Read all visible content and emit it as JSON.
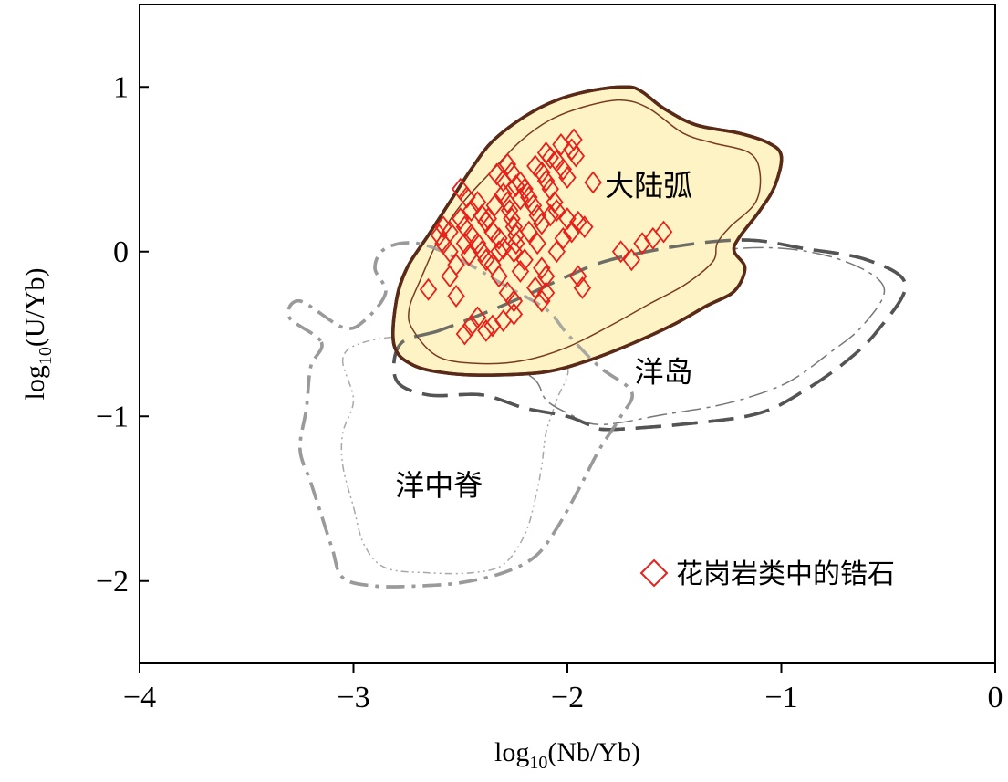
{
  "chart_data": {
    "type": "scatter",
    "xlim": [
      -4,
      0
    ],
    "ylim": [
      -2.5,
      1.5
    ],
    "xticks": [
      -4,
      -3,
      -2,
      -1,
      0
    ],
    "yticks": [
      -2,
      -1,
      0,
      1
    ],
    "xtick_labels": [
      "−4",
      "−3",
      "−2",
      "−1",
      "0"
    ],
    "ytick_labels": [
      "−2",
      "−1",
      "0",
      "1"
    ],
    "xlabel": {
      "pre": "log",
      "sub": "10",
      "post": "(Nb/Yb)"
    },
    "ylabel": {
      "pre": "log",
      "sub": "10",
      "post": "(U/Yb)"
    },
    "grid": false,
    "legend_position": "bottom-right",
    "regions": [
      {
        "label": "大陆弧",
        "fill": "#fdf3c4",
        "outer_color": "#5a2a18",
        "outer": [
          [
            -2.81,
            -0.57
          ],
          [
            -2.72,
            -0.69
          ],
          [
            -2.55,
            -0.74
          ],
          [
            -2.35,
            -0.75
          ],
          [
            -2.1,
            -0.73
          ],
          [
            -1.9,
            -0.66
          ],
          [
            -1.7,
            -0.56
          ],
          [
            -1.5,
            -0.44
          ],
          [
            -1.35,
            -0.33
          ],
          [
            -1.22,
            -0.24
          ],
          [
            -1.17,
            -0.1
          ],
          [
            -1.22,
            0.0
          ],
          [
            -1.2,
            0.08
          ],
          [
            -1.1,
            0.25
          ],
          [
            -1.03,
            0.4
          ],
          [
            -1.0,
            0.58
          ],
          [
            -1.06,
            0.66
          ],
          [
            -1.2,
            0.72
          ],
          [
            -1.4,
            0.77
          ],
          [
            -1.55,
            0.87
          ],
          [
            -1.65,
            0.97
          ],
          [
            -1.72,
            1.0
          ],
          [
            -1.88,
            0.98
          ],
          [
            -2.05,
            0.92
          ],
          [
            -2.2,
            0.82
          ],
          [
            -2.35,
            0.67
          ],
          [
            -2.45,
            0.5
          ],
          [
            -2.55,
            0.3
          ],
          [
            -2.65,
            0.1
          ],
          [
            -2.75,
            -0.1
          ],
          [
            -2.8,
            -0.3
          ]
        ],
        "inner": [
          [
            -2.72,
            -0.48
          ],
          [
            -2.6,
            -0.64
          ],
          [
            -2.4,
            -0.68
          ],
          [
            -2.2,
            -0.66
          ],
          [
            -2.0,
            -0.58
          ],
          [
            -1.8,
            -0.45
          ],
          [
            -1.62,
            -0.32
          ],
          [
            -1.45,
            -0.2
          ],
          [
            -1.32,
            -0.06
          ],
          [
            -1.3,
            0.05
          ],
          [
            -1.24,
            0.15
          ],
          [
            -1.12,
            0.3
          ],
          [
            -1.1,
            0.48
          ],
          [
            -1.15,
            0.6
          ],
          [
            -1.32,
            0.66
          ],
          [
            -1.46,
            0.72
          ],
          [
            -1.62,
            0.87
          ],
          [
            -1.75,
            0.92
          ],
          [
            -1.92,
            0.88
          ],
          [
            -2.08,
            0.8
          ],
          [
            -2.22,
            0.67
          ],
          [
            -2.36,
            0.48
          ],
          [
            -2.5,
            0.28
          ],
          [
            -2.6,
            0.08
          ],
          [
            -2.68,
            -0.15
          ],
          [
            -2.74,
            -0.35
          ]
        ],
        "label_xy": [
          -1.62,
          0.39
        ]
      },
      {
        "label": "洋岛",
        "outer_color": "#555555",
        "outer": [
          [
            -2.6,
            -0.48
          ],
          [
            -2.78,
            -0.56
          ],
          [
            -2.8,
            -0.78
          ],
          [
            -2.65,
            -0.87
          ],
          [
            -2.4,
            -0.87
          ],
          [
            -2.2,
            -0.95
          ],
          [
            -2.0,
            -1.0
          ],
          [
            -1.9,
            -1.05
          ],
          [
            -1.8,
            -1.08
          ],
          [
            -1.4,
            -1.04
          ],
          [
            -1.1,
            -0.98
          ],
          [
            -0.9,
            -0.85
          ],
          [
            -0.7,
            -0.67
          ],
          [
            -0.55,
            -0.48
          ],
          [
            -0.42,
            -0.2
          ],
          [
            -0.6,
            -0.05
          ],
          [
            -0.9,
            0.02
          ],
          [
            -1.15,
            0.07
          ],
          [
            -1.45,
            0.04
          ],
          [
            -1.8,
            -0.05
          ],
          [
            -2.0,
            -0.15
          ],
          [
            -2.2,
            -0.27
          ],
          [
            -2.4,
            -0.38
          ]
        ],
        "inner": [
          [
            -2.3,
            -0.62
          ],
          [
            -2.15,
            -0.78
          ],
          [
            -2.1,
            -0.9
          ],
          [
            -2.0,
            -0.98
          ],
          [
            -1.85,
            -1.05
          ],
          [
            -1.55,
            -0.99
          ],
          [
            -1.25,
            -0.92
          ],
          [
            -0.98,
            -0.8
          ],
          [
            -0.78,
            -0.62
          ],
          [
            -0.62,
            -0.45
          ],
          [
            -0.52,
            -0.22
          ],
          [
            -0.7,
            -0.06
          ],
          [
            -1.0,
            0.02
          ],
          [
            -1.35,
            0.0
          ],
          [
            -1.7,
            -0.1
          ],
          [
            -1.95,
            -0.25
          ],
          [
            -2.15,
            -0.4
          ]
        ],
        "label_xy": [
          -1.55,
          -0.74
        ]
      },
      {
        "label": "洋中脊",
        "outer_color": "#9a9a9a",
        "outer": [
          [
            -3.15,
            -0.55
          ],
          [
            -3.2,
            -0.7
          ],
          [
            -3.22,
            -0.95
          ],
          [
            -3.25,
            -1.2
          ],
          [
            -3.2,
            -1.4
          ],
          [
            -3.15,
            -1.6
          ],
          [
            -3.1,
            -1.8
          ],
          [
            -3.05,
            -1.98
          ],
          [
            -2.9,
            -2.03
          ],
          [
            -2.7,
            -2.03
          ],
          [
            -2.5,
            -2.01
          ],
          [
            -2.3,
            -1.95
          ],
          [
            -2.15,
            -1.85
          ],
          [
            -2.05,
            -1.68
          ],
          [
            -1.95,
            -1.45
          ],
          [
            -1.85,
            -1.2
          ],
          [
            -1.75,
            -1.0
          ],
          [
            -1.7,
            -0.85
          ],
          [
            -1.85,
            -0.7
          ],
          [
            -2.0,
            -0.5
          ],
          [
            -2.1,
            -0.35
          ],
          [
            -2.3,
            -0.2
          ],
          [
            -2.5,
            -0.05
          ],
          [
            -2.7,
            0.05
          ],
          [
            -2.85,
            0.02
          ],
          [
            -2.9,
            -0.1
          ],
          [
            -2.85,
            -0.25
          ],
          [
            -2.95,
            -0.42
          ],
          [
            -3.05,
            -0.46
          ],
          [
            -3.25,
            -0.3
          ],
          [
            -3.3,
            -0.4
          ]
        ],
        "inner": [
          [
            -3.05,
            -0.65
          ],
          [
            -3.0,
            -0.9
          ],
          [
            -3.05,
            -1.1
          ],
          [
            -3.05,
            -1.3
          ],
          [
            -3.0,
            -1.55
          ],
          [
            -2.95,
            -1.78
          ],
          [
            -2.85,
            -1.92
          ],
          [
            -2.65,
            -1.95
          ],
          [
            -2.45,
            -1.95
          ],
          [
            -2.3,
            -1.9
          ],
          [
            -2.2,
            -1.72
          ],
          [
            -2.15,
            -1.5
          ],
          [
            -2.12,
            -1.3
          ],
          [
            -2.1,
            -1.1
          ],
          [
            -2.05,
            -0.9
          ],
          [
            -2.0,
            -0.7
          ],
          [
            -2.15,
            -0.56
          ],
          [
            -2.4,
            -0.45
          ],
          [
            -2.7,
            -0.5
          ],
          [
            -2.95,
            -0.55
          ]
        ],
        "label_xy": [
          -2.6,
          -1.43
        ]
      }
    ],
    "series": [
      {
        "name": "花岗岩类中的锆石",
        "marker": "diamond",
        "color": "#e8201a",
        "points": [
          [
            -2.6,
            0.1
          ],
          [
            -2.58,
            0.05
          ],
          [
            -2.55,
            0.0
          ],
          [
            -2.52,
            -0.08
          ],
          [
            -2.55,
            0.12
          ],
          [
            -2.5,
            0.2
          ],
          [
            -2.48,
            0.15
          ],
          [
            -2.45,
            0.1
          ],
          [
            -2.42,
            0.05
          ],
          [
            -2.4,
            0.0
          ],
          [
            -2.38,
            -0.05
          ],
          [
            -2.45,
            0.25
          ],
          [
            -2.42,
            0.3
          ],
          [
            -2.4,
            0.22
          ],
          [
            -2.38,
            0.18
          ],
          [
            -2.35,
            0.12
          ],
          [
            -2.32,
            0.08
          ],
          [
            -2.3,
            0.02
          ],
          [
            -2.3,
            0.35
          ],
          [
            -2.28,
            0.3
          ],
          [
            -2.27,
            0.25
          ],
          [
            -2.26,
            0.2
          ],
          [
            -2.25,
            0.15
          ],
          [
            -2.24,
            0.1
          ],
          [
            -2.24,
            0.05
          ],
          [
            -2.25,
            0.0
          ],
          [
            -2.26,
            0.48
          ],
          [
            -2.22,
            0.42
          ],
          [
            -2.2,
            0.38
          ],
          [
            -2.18,
            0.33
          ],
          [
            -2.16,
            0.28
          ],
          [
            -2.14,
            0.22
          ],
          [
            -2.12,
            0.17
          ],
          [
            -2.15,
            0.52
          ],
          [
            -2.12,
            0.48
          ],
          [
            -2.1,
            0.43
          ],
          [
            -2.08,
            0.38
          ],
          [
            -2.06,
            0.3
          ],
          [
            -2.05,
            0.25
          ],
          [
            -2.1,
            0.6
          ],
          [
            -2.08,
            0.57
          ],
          [
            -2.05,
            0.55
          ],
          [
            -2.02,
            0.5
          ],
          [
            -2.0,
            0.45
          ],
          [
            -1.98,
            0.62
          ],
          [
            -1.96,
            0.58
          ],
          [
            -2.03,
            0.65
          ],
          [
            -1.97,
            0.68
          ],
          [
            -2.5,
            0.38
          ],
          [
            -2.47,
            0.33
          ],
          [
            -2.33,
            0.47
          ],
          [
            -2.3,
            0.43
          ],
          [
            -2.28,
            0.53
          ],
          [
            -2.0,
            0.2
          ],
          [
            -1.98,
            0.12
          ],
          [
            -1.95,
            0.18
          ],
          [
            -2.02,
            0.08
          ],
          [
            -2.05,
            0.0
          ],
          [
            -2.12,
            -0.1
          ],
          [
            -2.1,
            -0.15
          ],
          [
            -2.15,
            -0.22
          ],
          [
            -2.2,
            -0.05
          ],
          [
            -2.22,
            -0.12
          ],
          [
            -2.35,
            -0.08
          ],
          [
            -2.32,
            -0.15
          ],
          [
            -2.28,
            -0.25
          ],
          [
            -2.25,
            -0.3
          ],
          [
            -2.65,
            -0.23
          ],
          [
            -2.52,
            -0.27
          ],
          [
            -2.48,
            -0.5
          ],
          [
            -2.45,
            -0.45
          ],
          [
            -2.38,
            -0.48
          ],
          [
            -2.3,
            -0.42
          ],
          [
            -2.25,
            -0.38
          ],
          [
            -2.12,
            -0.3
          ],
          [
            -2.1,
            -0.25
          ],
          [
            -1.95,
            -0.15
          ],
          [
            -1.93,
            -0.22
          ],
          [
            -1.88,
            0.42
          ],
          [
            -1.92,
            0.15
          ],
          [
            -1.75,
            0.0
          ],
          [
            -1.7,
            -0.05
          ],
          [
            -1.65,
            0.05
          ],
          [
            -1.6,
            0.08
          ],
          [
            -1.55,
            0.12
          ],
          [
            -2.58,
            0.15
          ],
          [
            -2.37,
            0.2
          ],
          [
            -2.22,
            0.32
          ],
          [
            -2.18,
            0.12
          ],
          [
            -2.32,
            0.0
          ],
          [
            -2.46,
            -0.02
          ],
          [
            -2.48,
            0.05
          ],
          [
            -2.34,
            0.28
          ],
          [
            -2.24,
            0.4
          ],
          [
            -2.08,
            0.22
          ],
          [
            -2.14,
            0.05
          ],
          [
            -2.55,
            -0.15
          ],
          [
            -2.42,
            -0.4
          ],
          [
            -2.35,
            -0.45
          ]
        ]
      }
    ],
    "legend": {
      "label": "花岗岩类中的锆石"
    }
  }
}
